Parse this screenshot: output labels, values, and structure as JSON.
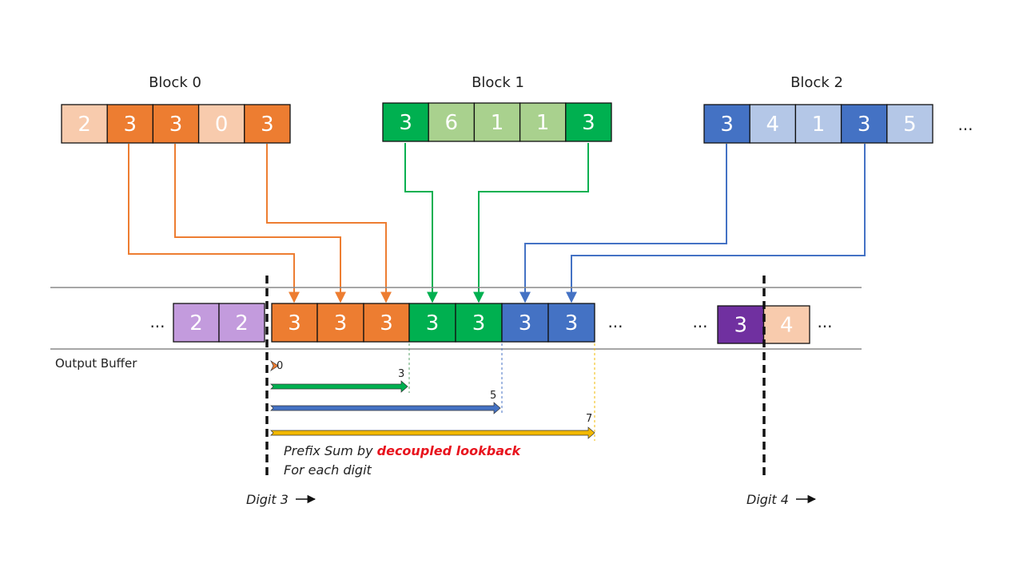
{
  "colors": {
    "orange": "#ED7D31",
    "orange_light": "#F8CBAD",
    "green": "#00B050",
    "green_light": "#A9D18E",
    "blue": "#4472C4",
    "blue_light": "#B4C7E7",
    "purple_light": "#C39BDD",
    "purple": "#7030A0",
    "yellow": "#F2B800",
    "red": "#E8141E"
  },
  "blocks": [
    {
      "title": "Block 0",
      "cells": [
        {
          "v": "2",
          "c": "orange_light"
        },
        {
          "v": "3",
          "c": "orange"
        },
        {
          "v": "3",
          "c": "orange"
        },
        {
          "v": "0",
          "c": "orange_light"
        },
        {
          "v": "3",
          "c": "orange"
        }
      ]
    },
    {
      "title": "Block 1",
      "cells": [
        {
          "v": "3",
          "c": "green"
        },
        {
          "v": "6",
          "c": "green_light"
        },
        {
          "v": "1",
          "c": "green_light"
        },
        {
          "v": "1",
          "c": "green_light"
        },
        {
          "v": "3",
          "c": "green"
        }
      ]
    },
    {
      "title": "Block 2",
      "cells": [
        {
          "v": "3",
          "c": "blue"
        },
        {
          "v": "4",
          "c": "blue_light"
        },
        {
          "v": "1",
          "c": "blue_light"
        },
        {
          "v": "3",
          "c": "blue"
        },
        {
          "v": "5",
          "c": "blue_light"
        }
      ]
    }
  ],
  "ellipsis": "...",
  "output_buffer": {
    "label": "Output Buffer",
    "left_cells": [
      {
        "v": "2",
        "c": "purple_light"
      },
      {
        "v": "2",
        "c": "purple_light"
      },
      {
        "v": "3",
        "c": "orange"
      },
      {
        "v": "3",
        "c": "orange"
      },
      {
        "v": "3",
        "c": "orange"
      },
      {
        "v": "3",
        "c": "green"
      },
      {
        "v": "3",
        "c": "green"
      },
      {
        "v": "3",
        "c": "blue"
      },
      {
        "v": "3",
        "c": "blue"
      }
    ],
    "right_cells": [
      {
        "v": "3",
        "c": "purple"
      },
      {
        "v": "4",
        "c": "orange_light"
      }
    ]
  },
  "offsets": [
    {
      "label": "0",
      "color": "orange"
    },
    {
      "label": "3",
      "color": "green"
    },
    {
      "label": "5",
      "color": "blue"
    },
    {
      "label": "7",
      "color": "yellow"
    }
  ],
  "caption": {
    "line1_prefix": "Prefix Sum by ",
    "line1_emph": "decoupled lookback",
    "line2": "For each digit"
  },
  "digit_labels": [
    "Digit 3",
    "Digit 4"
  ]
}
